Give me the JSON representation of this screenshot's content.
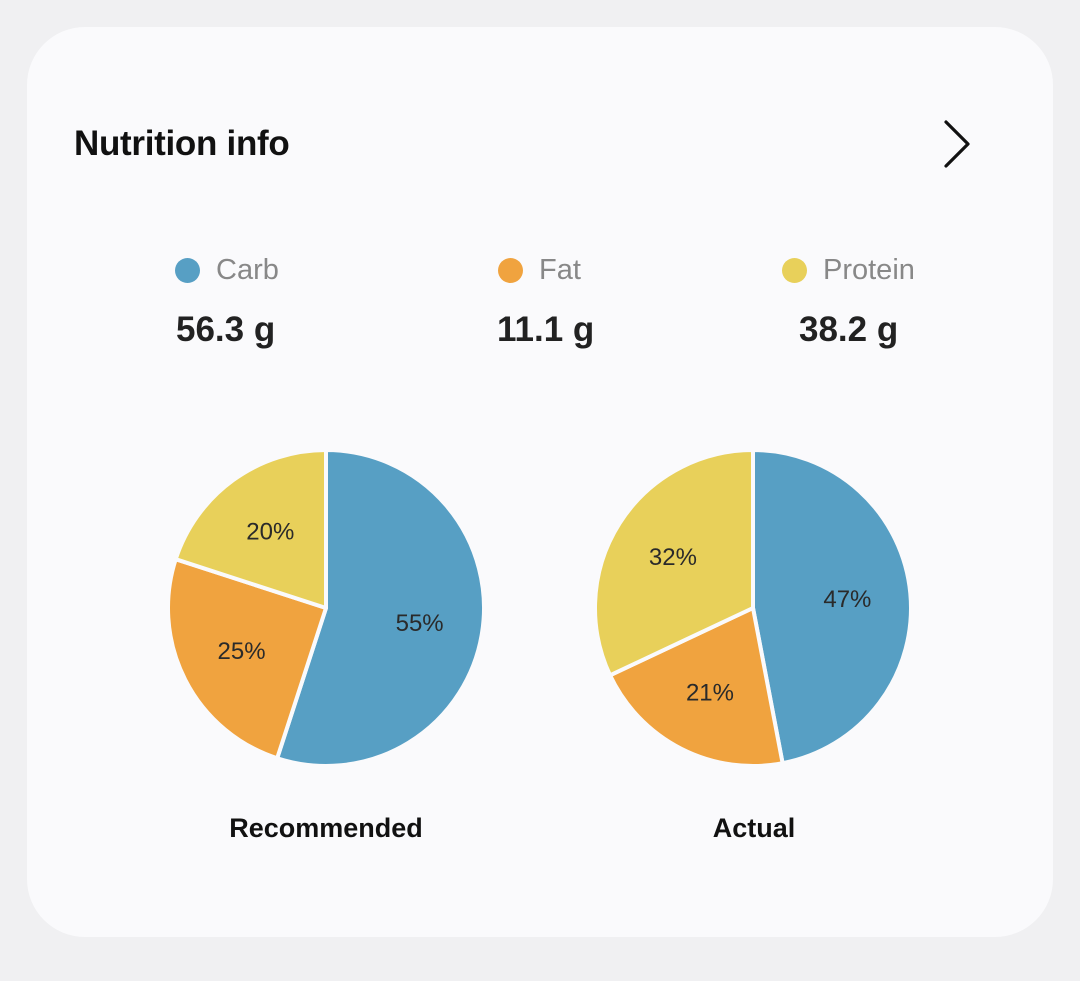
{
  "card": {
    "title": "Nutrition info"
  },
  "colors": {
    "carb": "#579fc4",
    "fat": "#f0a33f",
    "protein": "#e8d05a"
  },
  "legend": [
    {
      "label": "Carb",
      "value": "56.3 g",
      "color": "#579fc4",
      "icon": "dot-icon"
    },
    {
      "label": "Fat",
      "value": "11.1 g",
      "color": "#f0a33f",
      "icon": "dot-icon"
    },
    {
      "label": "Protein",
      "value": "38.2 g",
      "color": "#e8d05a",
      "icon": "dot-icon"
    }
  ],
  "chart_data": [
    {
      "type": "pie",
      "title": "Recommended",
      "slices": [
        {
          "name": "Carb",
          "value": 55,
          "label": "55%",
          "color": "#579fc4"
        },
        {
          "name": "Fat",
          "value": 25,
          "label": "25%",
          "color": "#f0a33f"
        },
        {
          "name": "Protein",
          "value": 20,
          "label": "20%",
          "color": "#e8d05a"
        }
      ]
    },
    {
      "type": "pie",
      "title": "Actual",
      "slices": [
        {
          "name": "Carb",
          "value": 47,
          "label": "47%",
          "color": "#579fc4"
        },
        {
          "name": "Fat",
          "value": 21,
          "label": "21%",
          "color": "#f0a33f"
        },
        {
          "name": "Protein",
          "value": 32,
          "label": "32%",
          "color": "#e8d05a"
        }
      ]
    }
  ]
}
